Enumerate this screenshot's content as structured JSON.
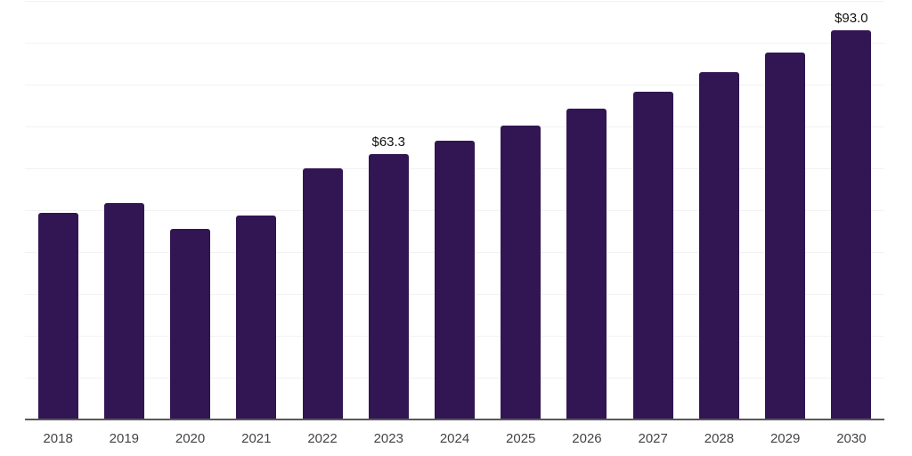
{
  "chart_data": {
    "type": "bar",
    "title": "",
    "xlabel": "",
    "ylabel": "",
    "categories": [
      "2018",
      "2019",
      "2020",
      "2021",
      "2022",
      "2023",
      "2024",
      "2025",
      "2026",
      "2027",
      "2028",
      "2029",
      "2030"
    ],
    "values": [
      49.3,
      51.8,
      45.5,
      48.8,
      60.0,
      63.3,
      66.6,
      70.2,
      74.2,
      78.4,
      83.0,
      87.6,
      93.0
    ],
    "data_labels": [
      "",
      "",
      "",
      "",
      "",
      "$63.3",
      "",
      "",
      "",
      "",
      "",
      "",
      "$93.0"
    ],
    "ylim": [
      0,
      100
    ],
    "grid": true,
    "grid_step": 10,
    "y_tick_labels_visible": false,
    "legend": "none",
    "colors": {
      "bar": "#321653",
      "gridline": "#f2f2f2",
      "axis": "#595959",
      "x_tick_label": "#444444",
      "data_label": "#111111"
    }
  }
}
